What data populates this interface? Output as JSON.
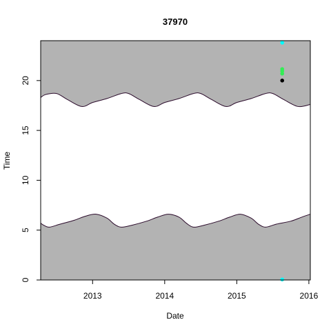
{
  "chart_data": {
    "type": "area",
    "title": "37970",
    "xlabel": "Date",
    "ylabel": "Time",
    "xlim": [
      2012.28,
      2016.02
    ],
    "ylim": [
      0,
      24
    ],
    "x_ticks": [
      2013,
      2014,
      2015,
      2016
    ],
    "x_tick_labels": [
      "2013",
      "2014",
      "2015",
      "2016"
    ],
    "y_ticks": [
      0,
      5,
      10,
      15,
      20
    ],
    "y_tick_labels": [
      "0",
      "5",
      "10",
      "15",
      "20"
    ],
    "grid": false,
    "legend": "none",
    "colors": {
      "night_fill": "#b3b3b3",
      "boundary_line": "#2a0a2a",
      "point_black": "#000000",
      "point_green": "#33ee55",
      "point_cyan": "#00ffff"
    },
    "sunrise": {
      "x": [
        2012.28,
        2012.32,
        2012.4,
        2012.55,
        2012.75,
        2012.9,
        2013.05,
        2013.2,
        2013.3,
        2013.4,
        2013.55,
        2013.75,
        2013.9,
        2014.05,
        2014.2,
        2014.3,
        2014.4,
        2014.55,
        2014.75,
        2014.9,
        2015.05,
        2015.2,
        2015.3,
        2015.4,
        2015.55,
        2015.75,
        2015.9,
        2016.02
      ],
      "y": [
        5.7,
        5.5,
        5.3,
        5.6,
        6.0,
        6.4,
        6.6,
        6.2,
        5.6,
        5.3,
        5.5,
        5.9,
        6.3,
        6.6,
        6.3,
        5.7,
        5.3,
        5.5,
        5.9,
        6.3,
        6.6,
        6.2,
        5.6,
        5.3,
        5.6,
        5.9,
        6.3,
        6.6
      ]
    },
    "sunset": {
      "x": [
        2012.28,
        2012.35,
        2012.5,
        2012.65,
        2012.85,
        2013.0,
        2013.2,
        2013.4,
        2013.5,
        2013.65,
        2013.85,
        2014.0,
        2014.2,
        2014.4,
        2014.5,
        2014.65,
        2014.85,
        2015.0,
        2015.2,
        2015.4,
        2015.5,
        2015.65,
        2015.85,
        2016.02
      ],
      "y": [
        18.3,
        18.6,
        18.7,
        18.1,
        17.4,
        17.8,
        18.2,
        18.7,
        18.7,
        18.1,
        17.4,
        17.8,
        18.2,
        18.7,
        18.7,
        18.1,
        17.4,
        17.8,
        18.2,
        18.7,
        18.7,
        18.1,
        17.4,
        17.6
      ]
    },
    "points": [
      {
        "x": 2015.63,
        "y": 20.0,
        "color": "point_black"
      },
      {
        "x": 2015.63,
        "y": 20.7,
        "color": "point_green"
      },
      {
        "x": 2015.63,
        "y": 20.95,
        "color": "point_green"
      },
      {
        "x": 2015.63,
        "y": 21.15,
        "color": "point_green"
      },
      {
        "x": 2015.63,
        "y": 23.8,
        "color": "point_cyan"
      },
      {
        "x": 2015.63,
        "y": 0.05,
        "color": "point_cyan"
      }
    ]
  }
}
